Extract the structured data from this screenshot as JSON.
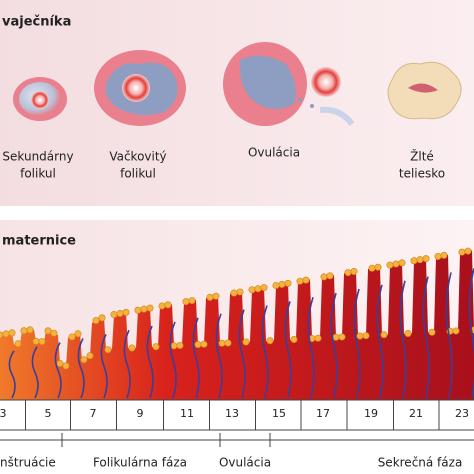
{
  "ovary": {
    "title": "vaječníka",
    "stages": [
      {
        "label": [
          "Sekundárny",
          "folikul"
        ]
      },
      {
        "label": [
          "Vačkovitý",
          "folikul"
        ]
      },
      {
        "label": [
          "Ovulácia"
        ]
      },
      {
        "label": [
          "Žlté",
          "teliesko"
        ]
      }
    ]
  },
  "uterus": {
    "title": "maternice",
    "days": [
      3,
      5,
      7,
      9,
      11,
      13,
      15,
      17,
      19,
      21,
      23
    ],
    "phases": [
      "nštruácie",
      "Folikulárna fáza",
      "Ovulácia",
      "Sekrečná fáza"
    ]
  }
}
